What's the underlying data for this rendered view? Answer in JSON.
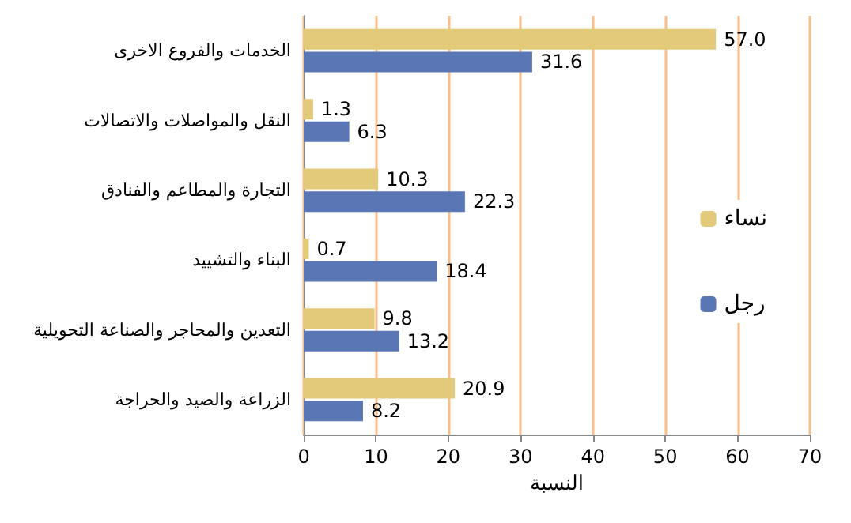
{
  "chart_data": {
    "type": "bar",
    "orientation": "horizontal",
    "xlabel": "النسبة",
    "categories": [
      "الخدمات والفروع الاخرى",
      "النقل والمواصلات والاتصالات",
      "التجارة والمطاعم والفنادق",
      "البناء والتشييد",
      "التعدين والمحاجر والصناعة التحويلية",
      "الزراعة والصيد والحراجة"
    ],
    "series": [
      {
        "name": "نساء",
        "color": "#e3c97a",
        "values": [
          57.0,
          1.3,
          10.3,
          0.7,
          9.8,
          20.9
        ],
        "value_labels": [
          "57.0",
          "1.3",
          "10.3",
          "0.7",
          "9.8",
          "20.9"
        ]
      },
      {
        "name": "رجل",
        "color": "#5a76b4",
        "values": [
          31.6,
          6.3,
          22.3,
          18.4,
          13.2,
          8.2
        ],
        "value_labels": [
          "31.6",
          "6.3",
          "22.3",
          "18.4",
          "13.2",
          "8.2"
        ]
      }
    ],
    "xlim": [
      0,
      70
    ],
    "xticks": [
      0,
      10,
      20,
      30,
      40,
      50,
      60,
      70
    ],
    "grid": "x",
    "legend": "right"
  }
}
